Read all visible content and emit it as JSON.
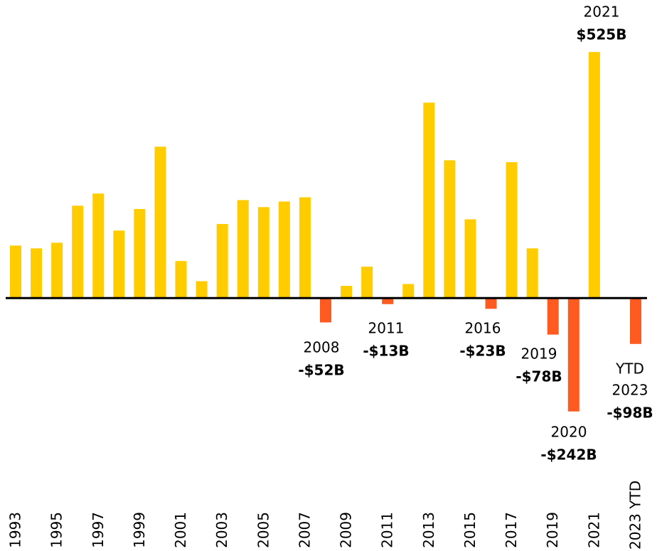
{
  "chart_data": {
    "type": "bar",
    "categories": [
      "1993",
      null,
      "1995",
      null,
      "1997",
      null,
      "1999",
      null,
      "2001",
      null,
      "2003",
      null,
      "2005",
      null,
      "2007",
      null,
      "2009",
      null,
      "2011",
      null,
      "2013",
      null,
      "2015",
      null,
      "2017",
      null,
      "2019",
      null,
      "2021",
      null,
      "2023 YTD"
    ],
    "values": [
      112,
      106,
      118,
      197,
      223,
      144,
      190,
      323,
      79,
      36,
      158,
      209,
      194,
      206,
      215,
      -52,
      26,
      67,
      -13,
      30,
      417,
      294,
      168,
      -23,
      290,
      106,
      -78,
      -242,
      525,
      1,
      -98
    ],
    "value_labels": [
      null,
      null,
      null,
      null,
      null,
      null,
      null,
      null,
      null,
      null,
      null,
      null,
      null,
      null,
      null,
      "-$52B",
      null,
      null,
      "-$13B",
      null,
      null,
      null,
      null,
      "-$23B",
      null,
      null,
      "-$78B",
      "-$242B",
      "$525B",
      null,
      "-$98B"
    ],
    "annotations": [
      null,
      null,
      null,
      null,
      null,
      null,
      null,
      null,
      null,
      null,
      null,
      null,
      null,
      null,
      null,
      [
        "2008"
      ],
      null,
      null,
      [
        "2011"
      ],
      null,
      null,
      null,
      null,
      [
        "2016"
      ],
      null,
      null,
      [
        "2019"
      ],
      [
        "2020"
      ],
      [
        "2021"
      ],
      null,
      [
        "YTD",
        "2023"
      ]
    ],
    "color": "#ffcc00",
    "negative_color": "#ff5a1f",
    "ylim": [
      -335,
      636
    ]
  }
}
